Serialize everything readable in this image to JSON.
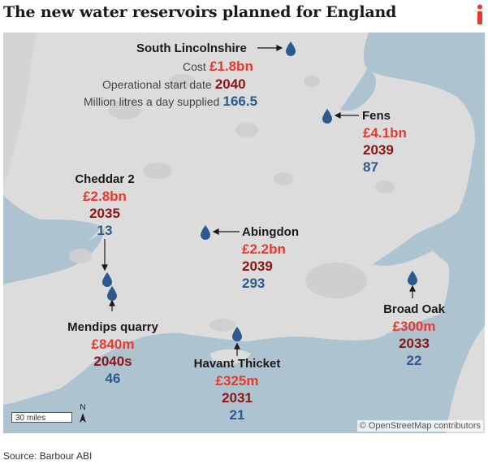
{
  "title": "The new water reservoirs planned for England",
  "logo_icon": "i-logo-icon",
  "colors": {
    "cost": "#e53a2e",
    "year": "#8c1414",
    "supply": "#2c5a8c",
    "land": "#dcdcdc",
    "sea": "#aec3d0",
    "drop": "#2c5a8c"
  },
  "legend": {
    "cost_label": "Cost",
    "year_label": "Operational start date",
    "supply_label": "Million litres a day supplied"
  },
  "reservoirs": [
    {
      "name": "South Lincolnshire",
      "cost": "£1.8bn",
      "year": "2040",
      "supply": "166.5"
    },
    {
      "name": "Fens",
      "cost": "£4.1bn",
      "year": "2039",
      "supply": "87"
    },
    {
      "name": "Cheddar 2",
      "cost": "£2.8bn",
      "year": "2035",
      "supply": "13"
    },
    {
      "name": "Abingdon",
      "cost": "£2.2bn",
      "year": "2039",
      "supply": "293"
    },
    {
      "name": "Mendips quarry",
      "cost": "£840m",
      "year": "2040s",
      "supply": "46"
    },
    {
      "name": "Broad Oak",
      "cost": "£300m",
      "year": "2033",
      "supply": "22"
    },
    {
      "name": "Havant Thicket",
      "cost": "£325m",
      "year": "2031",
      "supply": "21"
    }
  ],
  "scale": {
    "label": "30 miles"
  },
  "north": {
    "label": "N"
  },
  "attribution": "© OpenStreetMap contributors",
  "source": "Source: Barbour ABI"
}
